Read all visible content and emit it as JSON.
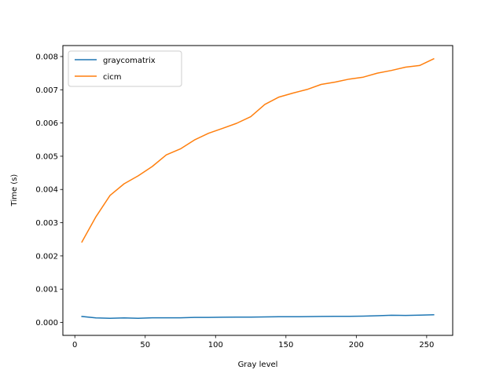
{
  "chart_data": {
    "type": "line",
    "title": "",
    "xlabel": "Gray level",
    "ylabel": "Time (s)",
    "xlim": [
      -8.5,
      268.5
    ],
    "ylim": [
      -0.00039,
      0.00833
    ],
    "x_ticks": [
      0,
      50,
      100,
      150,
      200,
      250
    ],
    "x_tick_labels": [
      "0",
      "50",
      "100",
      "150",
      "200",
      "250"
    ],
    "y_ticks": [
      0,
      0.001,
      0.002,
      0.003,
      0.004,
      0.005,
      0.006,
      0.007,
      0.008
    ],
    "y_tick_labels": [
      "0.000",
      "0.001",
      "0.002",
      "0.003",
      "0.004",
      "0.005",
      "0.006",
      "0.007",
      "0.008"
    ],
    "grid": false,
    "legend_position": "top-left",
    "x": [
      5,
      15,
      25,
      35,
      45,
      55,
      65,
      75,
      85,
      95,
      105,
      115,
      125,
      135,
      145,
      155,
      165,
      175,
      185,
      195,
      205,
      215,
      225,
      235,
      245,
      255
    ],
    "series": [
      {
        "name": "graycomatrix",
        "color": "#1f77b4",
        "values": [
          0.00018,
          0.000135,
          0.000125,
          0.000135,
          0.000125,
          0.00014,
          0.00014,
          0.00014,
          0.00015,
          0.00015,
          0.000155,
          0.00016,
          0.00016,
          0.000165,
          0.00017,
          0.00017,
          0.000175,
          0.00018,
          0.000185,
          0.000185,
          0.00019,
          0.0002,
          0.000215,
          0.00021,
          0.00022,
          0.00023
        ]
      },
      {
        "name": "cicm",
        "color": "#ff7f0e",
        "values": [
          0.00242,
          0.00318,
          0.00382,
          0.00417,
          0.00441,
          0.00469,
          0.00504,
          0.00522,
          0.00549,
          0.00569,
          0.00584,
          0.00599,
          0.00619,
          0.00656,
          0.00678,
          0.0069,
          0.00701,
          0.00716,
          0.00723,
          0.00732,
          0.00738,
          0.0075,
          0.00758,
          0.00768,
          0.00773,
          0.00793
        ]
      }
    ]
  }
}
